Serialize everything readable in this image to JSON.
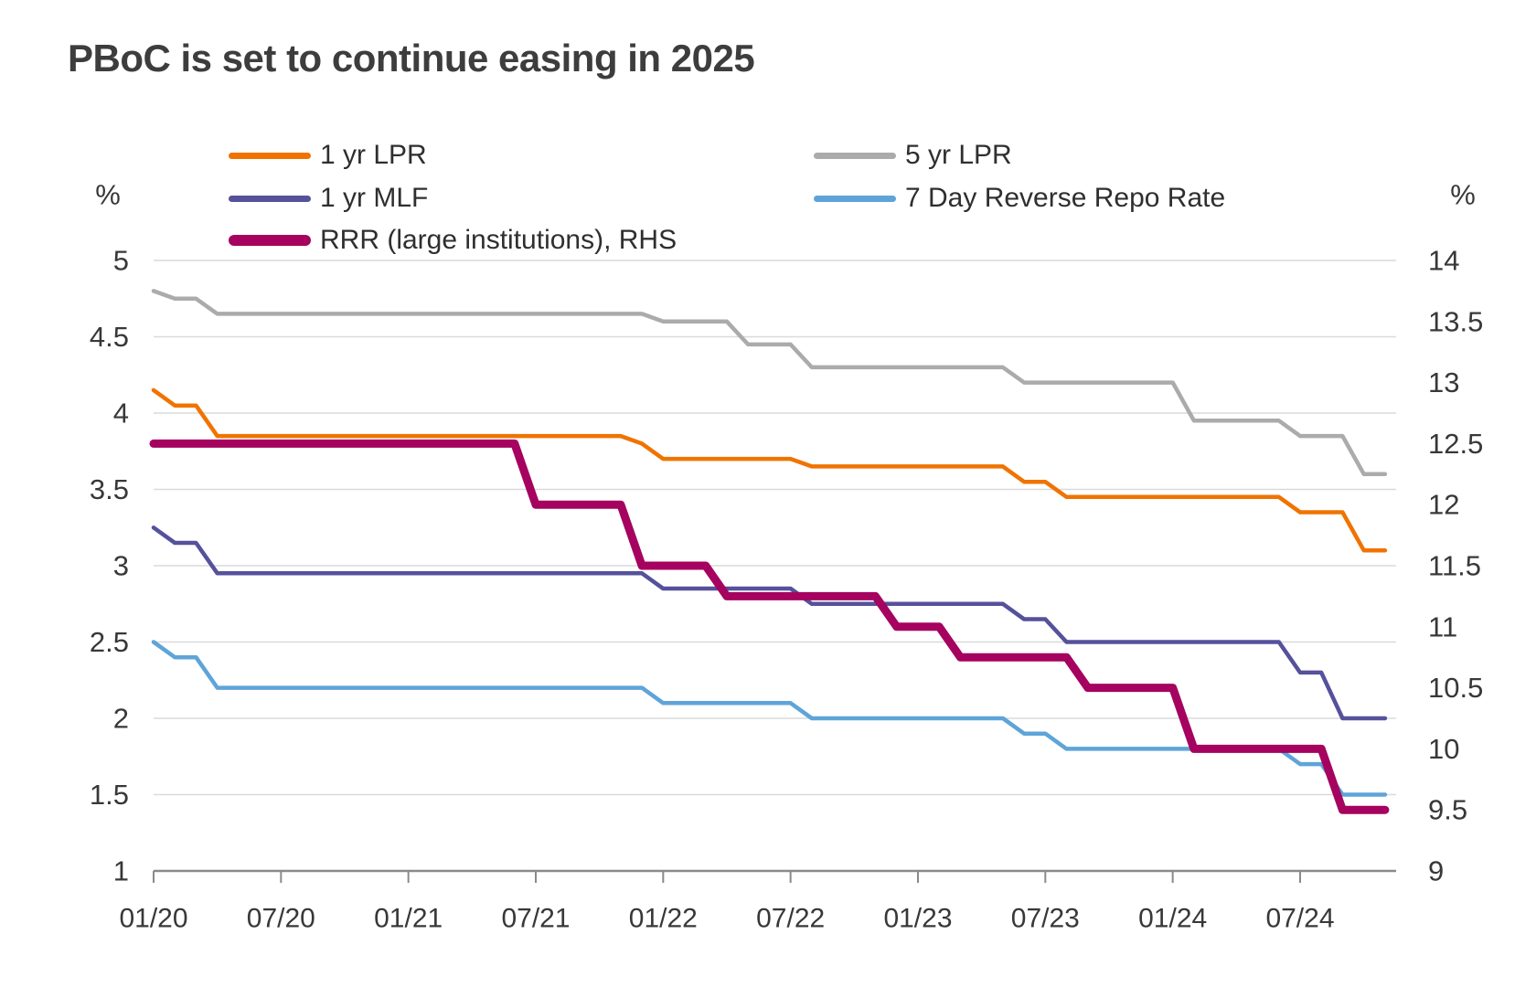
{
  "title": "PBoC is set to continue easing in 2025",
  "legend": {
    "items": [
      {
        "label": "1 yr LPR",
        "color": "#F07300",
        "thick": false,
        "col": 1,
        "row": 1
      },
      {
        "label": "1 yr MLF",
        "color": "#55519B",
        "thick": false,
        "col": 1,
        "row": 2
      },
      {
        "label": "RRR (large institutions), RHS",
        "color": "#A5035F",
        "thick": true,
        "col": 1,
        "row": 3
      },
      {
        "label": "5 yr LPR",
        "color": "#ABABAB",
        "thick": false,
        "col": 2,
        "row": 1
      },
      {
        "label": "7 Day Reverse Repo Rate",
        "color": "#5EA4D9",
        "thick": false,
        "col": 2,
        "row": 2
      }
    ]
  },
  "chart_data": {
    "type": "line",
    "title": "PBoC is set to continue easing in 2025",
    "x": [
      "01/20",
      "02/20",
      "03/20",
      "04/20",
      "05/20",
      "06/20",
      "07/20",
      "08/20",
      "09/20",
      "10/20",
      "11/20",
      "12/20",
      "01/21",
      "02/21",
      "03/21",
      "04/21",
      "05/21",
      "06/21",
      "07/21",
      "08/21",
      "09/21",
      "10/21",
      "11/21",
      "12/21",
      "01/22",
      "02/22",
      "03/22",
      "04/22",
      "05/22",
      "06/22",
      "07/22",
      "08/22",
      "09/22",
      "10/22",
      "11/22",
      "12/22",
      "01/23",
      "02/23",
      "03/23",
      "04/23",
      "05/23",
      "06/23",
      "07/23",
      "08/23",
      "09/23",
      "10/23",
      "11/23",
      "12/23",
      "01/24",
      "02/24",
      "03/24",
      "04/24",
      "05/24",
      "06/24",
      "07/24",
      "08/24",
      "09/24",
      "10/24",
      "11/24"
    ],
    "x_tick_labels": [
      "01/20",
      "07/20",
      "01/21",
      "07/21",
      "01/22",
      "07/22",
      "01/23",
      "07/23",
      "01/24",
      "07/24"
    ],
    "left_axis": {
      "unit": "%",
      "min": 1,
      "max": 5,
      "ticks": [
        5,
        4.5,
        4,
        3.5,
        3,
        2.5,
        2,
        1.5,
        1
      ]
    },
    "right_axis": {
      "unit": "%",
      "min": 9,
      "max": 14,
      "ticks": [
        14,
        13.5,
        13,
        12.5,
        12,
        11.5,
        11,
        10.5,
        10,
        9.5,
        9
      ]
    },
    "grid": {
      "horizontal": true,
      "vertical": false,
      "at": "left-axis ticks"
    },
    "legend_position": "top, two columns",
    "series": [
      {
        "name": "5 yr LPR",
        "axis": "left",
        "color": "#ABABAB",
        "width": 4.5,
        "values": [
          4.8,
          4.75,
          4.75,
          4.65,
          4.65,
          4.65,
          4.65,
          4.65,
          4.65,
          4.65,
          4.65,
          4.65,
          4.65,
          4.65,
          4.65,
          4.65,
          4.65,
          4.65,
          4.65,
          4.65,
          4.65,
          4.65,
          4.65,
          4.65,
          4.6,
          4.6,
          4.6,
          4.6,
          4.45,
          4.45,
          4.45,
          4.3,
          4.3,
          4.3,
          4.3,
          4.3,
          4.3,
          4.3,
          4.3,
          4.3,
          4.3,
          4.2,
          4.2,
          4.2,
          4.2,
          4.2,
          4.2,
          4.2,
          4.2,
          3.95,
          3.95,
          3.95,
          3.95,
          3.95,
          3.85,
          3.85,
          3.85,
          3.6,
          3.6
        ]
      },
      {
        "name": "1 yr LPR",
        "axis": "left",
        "color": "#F07300",
        "width": 4.5,
        "values": [
          4.15,
          4.05,
          4.05,
          3.85,
          3.85,
          3.85,
          3.85,
          3.85,
          3.85,
          3.85,
          3.85,
          3.85,
          3.85,
          3.85,
          3.85,
          3.85,
          3.85,
          3.85,
          3.85,
          3.85,
          3.85,
          3.85,
          3.85,
          3.8,
          3.7,
          3.7,
          3.7,
          3.7,
          3.7,
          3.7,
          3.7,
          3.65,
          3.65,
          3.65,
          3.65,
          3.65,
          3.65,
          3.65,
          3.65,
          3.65,
          3.65,
          3.55,
          3.55,
          3.45,
          3.45,
          3.45,
          3.45,
          3.45,
          3.45,
          3.45,
          3.45,
          3.45,
          3.45,
          3.45,
          3.35,
          3.35,
          3.35,
          3.1,
          3.1
        ]
      },
      {
        "name": "7 Day Reverse Repo Rate",
        "axis": "left",
        "color": "#5EA4D9",
        "width": 4.5,
        "values": [
          2.5,
          2.4,
          2.4,
          2.2,
          2.2,
          2.2,
          2.2,
          2.2,
          2.2,
          2.2,
          2.2,
          2.2,
          2.2,
          2.2,
          2.2,
          2.2,
          2.2,
          2.2,
          2.2,
          2.2,
          2.2,
          2.2,
          2.2,
          2.2,
          2.1,
          2.1,
          2.1,
          2.1,
          2.1,
          2.1,
          2.1,
          2.0,
          2.0,
          2.0,
          2.0,
          2.0,
          2.0,
          2.0,
          2.0,
          2.0,
          2.0,
          1.9,
          1.9,
          1.8,
          1.8,
          1.8,
          1.8,
          1.8,
          1.8,
          1.8,
          1.8,
          1.8,
          1.8,
          1.8,
          1.7,
          1.7,
          1.5,
          1.5,
          1.5
        ]
      },
      {
        "name": "1 yr MLF",
        "axis": "left",
        "color": "#55519B",
        "width": 4.5,
        "values": [
          3.25,
          3.15,
          3.15,
          2.95,
          2.95,
          2.95,
          2.95,
          2.95,
          2.95,
          2.95,
          2.95,
          2.95,
          2.95,
          2.95,
          2.95,
          2.95,
          2.95,
          2.95,
          2.95,
          2.95,
          2.95,
          2.95,
          2.95,
          2.95,
          2.85,
          2.85,
          2.85,
          2.85,
          2.85,
          2.85,
          2.85,
          2.75,
          2.75,
          2.75,
          2.75,
          2.75,
          2.75,
          2.75,
          2.75,
          2.75,
          2.75,
          2.65,
          2.65,
          2.5,
          2.5,
          2.5,
          2.5,
          2.5,
          2.5,
          2.5,
          2.5,
          2.5,
          2.5,
          2.5,
          2.3,
          2.3,
          2.0,
          2.0,
          2.0
        ]
      },
      {
        "name": "RRR (large institutions), RHS",
        "axis": "right",
        "color": "#A5035F",
        "width": 9,
        "values": [
          12.5,
          12.5,
          12.5,
          12.5,
          12.5,
          12.5,
          12.5,
          12.5,
          12.5,
          12.5,
          12.5,
          12.5,
          12.5,
          12.5,
          12.5,
          12.5,
          12.5,
          12.5,
          12.0,
          12.0,
          12.0,
          12.0,
          12.0,
          11.5,
          11.5,
          11.5,
          11.5,
          11.25,
          11.25,
          11.25,
          11.25,
          11.25,
          11.25,
          11.25,
          11.25,
          11.0,
          11.0,
          11.0,
          10.75,
          10.75,
          10.75,
          10.75,
          10.75,
          10.75,
          10.5,
          10.5,
          10.5,
          10.5,
          10.5,
          10.0,
          10.0,
          10.0,
          10.0,
          10.0,
          10.0,
          10.0,
          9.5,
          9.5,
          9.5
        ]
      }
    ]
  }
}
